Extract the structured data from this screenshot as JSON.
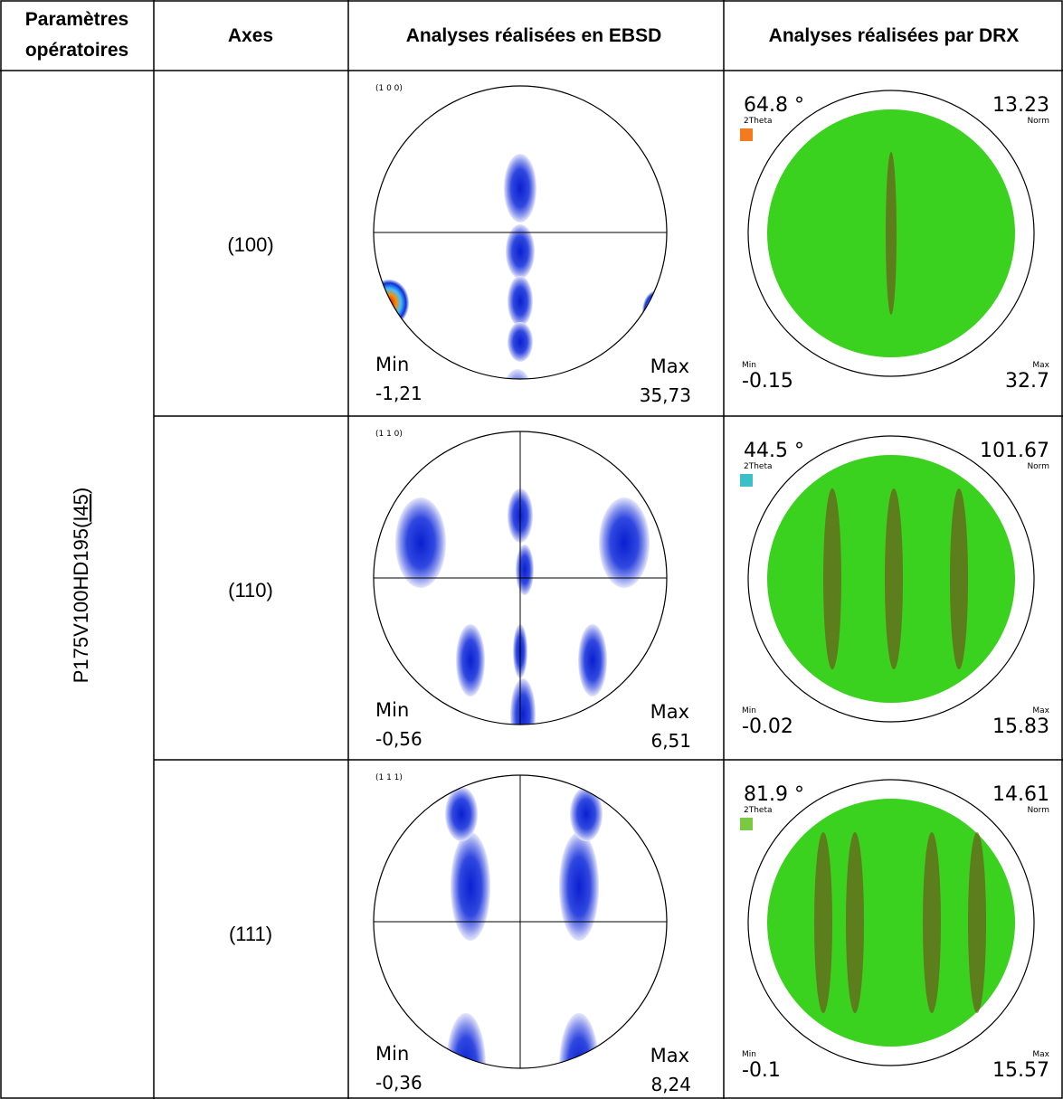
{
  "table": {
    "header": [
      [
        "Paramètres",
        "opératoires"
      ],
      "Axes",
      "Analyses réalisées en EBSD",
      "Analyses réalisées par DRX"
    ],
    "parameter": {
      "text": "P175V100HD195(",
      "underlined": "I45",
      "close": ")"
    },
    "rows": [
      {
        "axis": "(100)",
        "ebsd": {
          "label": "(1 0 0)",
          "min_label": "Min",
          "min": "-1,21",
          "max_label": "Max",
          "max": "35,73"
        },
        "drx": {
          "angle": "64.8 °",
          "angle_label": "2Theta",
          "norm": "13.23",
          "norm_label": "Norm",
          "min_label": "Min",
          "min": "-0.15",
          "max_label": "Max",
          "max": "32.7",
          "color": "#f47a20"
        }
      },
      {
        "axis": "(110)",
        "ebsd": {
          "label": "(1 1 0)",
          "min_label": "Min",
          "min": "-0,56",
          "max_label": "Max",
          "max": "6,51"
        },
        "drx": {
          "angle": "44.5 °",
          "angle_label": "2Theta",
          "norm": "101.67",
          "norm_label": "Norm",
          "min_label": "Min",
          "min": "-0.02",
          "max_label": "Max",
          "max": "15.83",
          "color": "#3cc0c8"
        }
      },
      {
        "axis": "(111)",
        "ebsd": {
          "label": "(1 1 1)",
          "min_label": "Min",
          "min": "-0,36",
          "max_label": "Max",
          "max": "8,24"
        },
        "drx": {
          "angle": "81.9 °",
          "angle_label": "2Theta",
          "norm": "14.61",
          "norm_label": "Norm",
          "min_label": "Min",
          "min": "-0.1",
          "max_label": "Max",
          "max": "15.57",
          "color": "#7ac943"
        }
      }
    ]
  }
}
